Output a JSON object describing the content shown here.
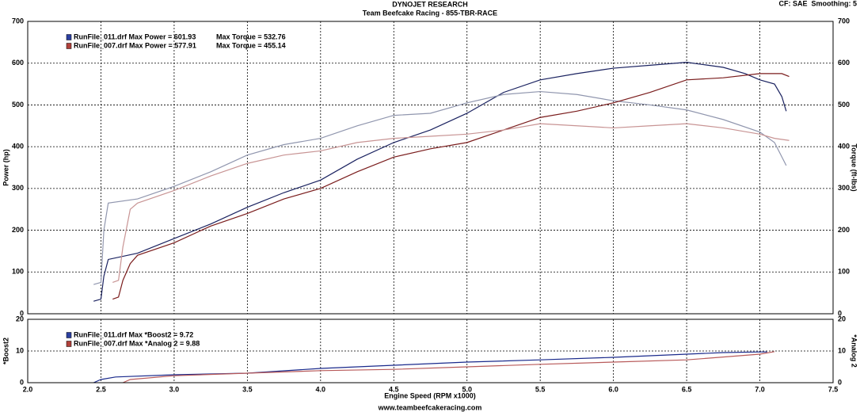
{
  "chart_data": [
    {
      "type": "line",
      "title": "DYNOJET RESEARCH",
      "subtitle": "Team Beefcake Racing - 855-TBR-RACE",
      "note": "CF: SAE  Smoothing: 5",
      "ylabel": "Power (hp)",
      "y2label": "Torque (ft-lbs)",
      "xlim": [
        2,
        7.5
      ],
      "ylim": [
        0,
        700
      ],
      "yticks": [
        0,
        100,
        200,
        300,
        400,
        500,
        600,
        700
      ],
      "y2lim": [
        0,
        700
      ],
      "y2ticks": [
        0,
        100,
        200,
        300,
        400,
        500,
        600,
        700
      ],
      "grid": true,
      "legend": [
        {
          "text": "RunFile_011.drf Max Power = 601.93",
          "text2": "Max Torque = 532.76",
          "color": "#2b3fa0"
        },
        {
          "text": "RunFile_007.drf Max Power = 577.91",
          "text2": "Max Torque = 455.14",
          "color": "#b0403a"
        }
      ],
      "series": [
        {
          "color": "#1a2260",
          "x": [
            2.45,
            2.5,
            2.52,
            2.55,
            2.75,
            3.0,
            3.25,
            3.5,
            3.75,
            4.0,
            4.25,
            4.5,
            4.75,
            5.0,
            5.25,
            5.5,
            5.75,
            6.0,
            6.25,
            6.5,
            6.75,
            6.9,
            7.0,
            7.1,
            7.15,
            7.18
          ],
          "values": [
            30,
            35,
            90,
            130,
            145,
            180,
            215,
            255,
            290,
            320,
            370,
            410,
            440,
            480,
            530,
            560,
            575,
            588,
            595,
            602,
            590,
            575,
            560,
            550,
            520,
            485
          ]
        },
        {
          "color": "#9096ae",
          "axis": "y2",
          "x": [
            2.45,
            2.5,
            2.52,
            2.55,
            2.75,
            3.0,
            3.25,
            3.5,
            3.75,
            4.0,
            4.25,
            4.5,
            4.75,
            5.0,
            5.25,
            5.5,
            5.75,
            6.0,
            6.25,
            6.5,
            6.75,
            7.0,
            7.1,
            7.18
          ],
          "values": [
            70,
            75,
            200,
            265,
            275,
            305,
            340,
            380,
            405,
            420,
            450,
            475,
            480,
            505,
            525,
            532,
            525,
            510,
            500,
            488,
            465,
            435,
            410,
            355
          ]
        },
        {
          "color": "#7a1c1c",
          "x": [
            2.58,
            2.62,
            2.65,
            2.7,
            2.75,
            3.0,
            3.25,
            3.5,
            3.75,
            4.0,
            4.25,
            4.5,
            4.75,
            5.0,
            5.25,
            5.5,
            5.75,
            6.0,
            6.25,
            6.5,
            6.75,
            7.0,
            7.15,
            7.2
          ],
          "values": [
            35,
            40,
            80,
            120,
            140,
            170,
            210,
            240,
            275,
            300,
            340,
            375,
            395,
            410,
            440,
            470,
            485,
            505,
            530,
            560,
            565,
            575,
            575,
            568
          ]
        },
        {
          "color": "#c89494",
          "axis": "y2",
          "x": [
            2.58,
            2.62,
            2.65,
            2.7,
            2.75,
            3.0,
            3.25,
            3.5,
            3.75,
            4.0,
            4.25,
            4.5,
            4.75,
            5.0,
            5.25,
            5.5,
            5.75,
            6.0,
            6.25,
            6.5,
            6.75,
            7.0,
            7.1,
            7.2
          ],
          "values": [
            75,
            80,
            160,
            250,
            265,
            295,
            330,
            360,
            380,
            390,
            410,
            420,
            425,
            430,
            440,
            455,
            450,
            445,
            450,
            455,
            445,
            430,
            420,
            415
          ]
        }
      ]
    },
    {
      "type": "line",
      "ylabel": "*Boost2",
      "y2label": "*Analog 2",
      "xlabel": "Engine Speed (RPM x1000)",
      "caption": "www.teambeefcakeracing.com",
      "xlim": [
        2,
        7.5
      ],
      "xticks": [
        {
          "value": 2,
          "label": "2.0"
        },
        2.5,
        {
          "value": 3,
          "label": "3.0"
        },
        3.5,
        {
          "value": 4,
          "label": "4.0"
        },
        4.5,
        {
          "value": 5,
          "label": "5.0"
        },
        5.5,
        {
          "value": 6,
          "label": "6.0"
        },
        6.5,
        {
          "value": 7,
          "label": "7.0"
        },
        7.5
      ],
      "ylim": [
        0,
        20
      ],
      "yticks": [
        0,
        10,
        20
      ],
      "y2lim": [
        0,
        20
      ],
      "y2ticks": [
        0,
        10,
        20
      ],
      "grid": true,
      "legend": [
        {
          "text": "RunFile_011.drf Max *Boost2 = 9.72",
          "color": "#2b3fa0"
        },
        {
          "text": "RunFile_007.drf Max *Analog 2 = 9.88",
          "color": "#b0403a"
        }
      ],
      "series": [
        {
          "color": "#1a2a8c",
          "x": [
            2.45,
            2.5,
            2.6,
            3.0,
            3.5,
            4.0,
            4.5,
            5.0,
            5.5,
            6.0,
            6.5,
            6.75,
            7.0,
            7.05
          ],
          "values": [
            0,
            1,
            1.8,
            2.5,
            3,
            4.5,
            5.5,
            6.5,
            7.2,
            8,
            9,
            9.5,
            9.7,
            9.7
          ]
        },
        {
          "color": "#b85a5a",
          "axis": "y2",
          "x": [
            2.65,
            2.7,
            3.0,
            3.5,
            4.0,
            4.5,
            5.0,
            5.5,
            6.0,
            6.5,
            7.0,
            7.1
          ],
          "values": [
            0,
            1,
            2.2,
            3,
            3.8,
            4.2,
            5,
            5.8,
            6.5,
            7.2,
            9,
            9.8
          ]
        }
      ]
    }
  ]
}
